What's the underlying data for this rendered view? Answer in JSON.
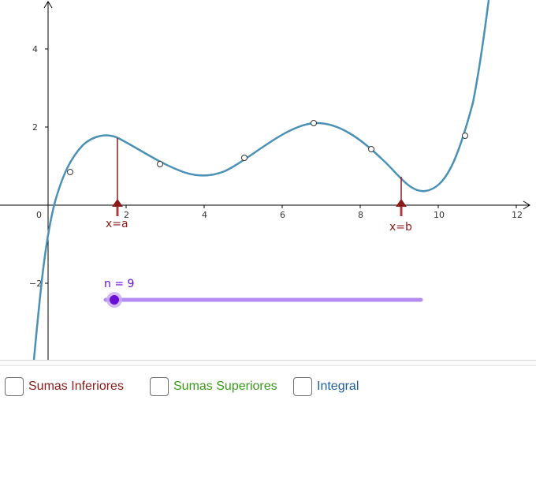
{
  "graph": {
    "y_axis_labels": [
      "4",
      "2",
      "0",
      "−2"
    ],
    "x_axis_labels": [
      "2",
      "4",
      "6",
      "8",
      "10",
      "12"
    ],
    "axis_color": "#000000",
    "curve_color": "#4b91b5",
    "marker_color": "#8b1a1a",
    "point_a_label": "x=a",
    "point_b_label": "x=b",
    "point_a_x": 1.8,
    "point_b_x": 9.1
  },
  "slider": {
    "label": "n = 9",
    "value": 9,
    "color": "#b38cf0",
    "knob_color": "#6a0dd6"
  },
  "checkboxes": {
    "lower_sums": {
      "label": "Sumas Inferiores",
      "color": "#8b1a1a",
      "checked": false
    },
    "upper_sums": {
      "label": "Sumas Superiores",
      "color": "#3a9a1a",
      "checked": false
    },
    "integral": {
      "label": "Integral",
      "color": "#1e5fa0",
      "checked": false
    }
  }
}
